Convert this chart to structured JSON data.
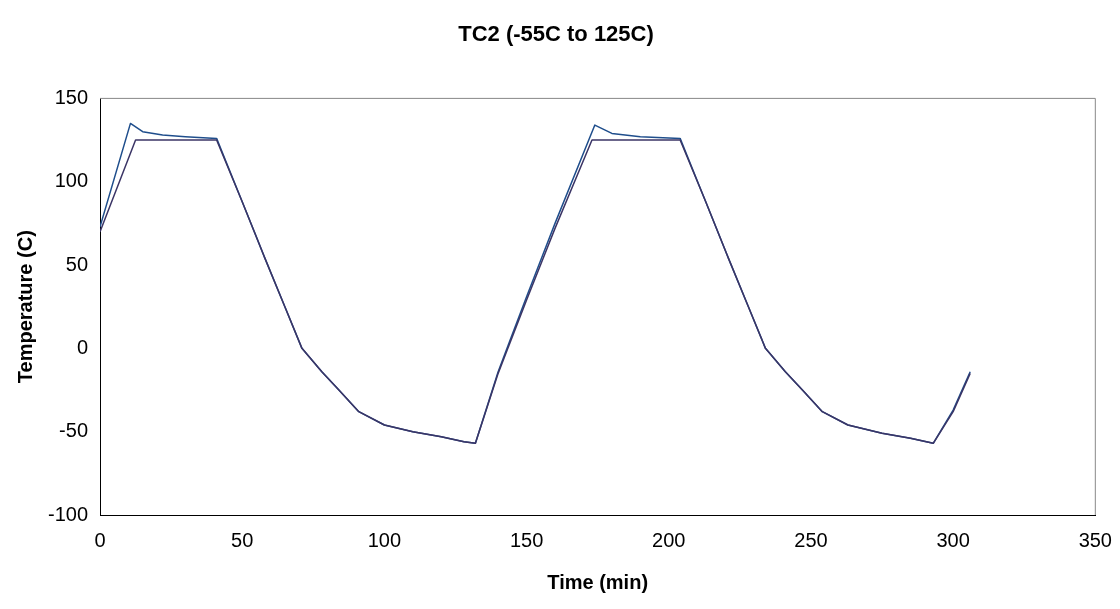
{
  "chart_data": {
    "type": "line",
    "title": "TC2 (-55C to 125C)",
    "xlabel": "Time (min)",
    "ylabel": "Temperature (C)",
    "xlim": [
      0,
      350
    ],
    "xticks": [
      0,
      50,
      100,
      150,
      200,
      250,
      300,
      350
    ],
    "ylim": [
      -100,
      150
    ],
    "yticks": [
      -100,
      -50,
      0,
      50,
      100,
      150
    ],
    "grid": false,
    "legend": false,
    "marker": "none",
    "line_style": "solid",
    "series": [
      {
        "color": "#3b3566",
        "x": [
          0,
          12.5,
          20,
          30,
          41,
          50,
          58,
          65,
          71,
          78,
          84,
          91,
          100,
          110,
          120,
          128,
          132,
          140,
          150,
          160,
          173,
          185,
          195,
          204,
          213,
          221,
          228,
          234,
          241,
          247,
          254,
          263,
          275,
          285,
          293,
          300,
          306
        ],
        "values": [
          70,
          125,
          125,
          125,
          125,
          88,
          54,
          25,
          0,
          -14,
          -25,
          -38,
          -46,
          -50,
          -53,
          -56,
          -57,
          -15,
          29,
          72,
          125,
          125,
          125,
          125,
          88,
          54,
          25,
          0,
          -14,
          -25,
          -38,
          -46,
          -51,
          -54,
          -57,
          -38,
          -15
        ]
      },
      {
        "color": "#1f4e8c",
        "x": [
          0,
          10.7,
          15,
          22,
          30,
          41,
          50,
          58,
          65,
          71,
          78,
          84,
          91,
          100,
          110,
          120,
          128,
          132,
          140,
          150,
          160,
          174,
          180,
          190,
          204,
          213,
          221,
          228,
          234,
          241,
          247,
          254,
          263,
          275,
          285,
          293,
          300,
          306
        ],
        "values": [
          73,
          135,
          130,
          128,
          127,
          126,
          88,
          54,
          25,
          0,
          -14,
          -25,
          -38,
          -46,
          -50,
          -53,
          -56,
          -57,
          -14,
          31,
          75,
          134,
          129,
          127,
          126,
          88,
          54,
          25,
          0,
          -14,
          -25,
          -38,
          -46,
          -51,
          -54,
          -57,
          -37,
          -14
        ]
      }
    ]
  }
}
